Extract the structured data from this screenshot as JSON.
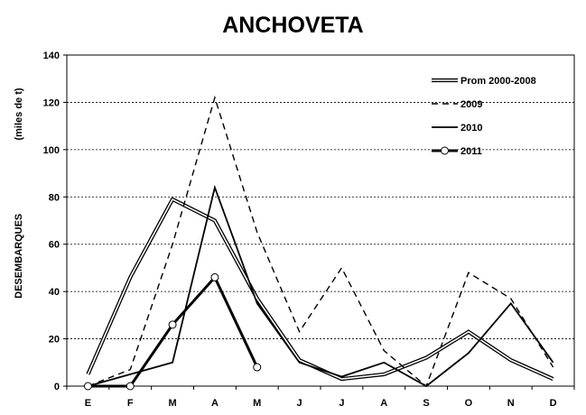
{
  "chart_data": {
    "type": "line",
    "title": "ANCHOVETA",
    "ylabel": "DESEMBARQUES",
    "ylabel_unit": "(miles de t)",
    "xlabel": "",
    "categories": [
      "E",
      "F",
      "M",
      "A",
      "M",
      "J",
      "J",
      "A",
      "S",
      "O",
      "N",
      "D"
    ],
    "ylim": [
      0,
      140
    ],
    "yticks": [
      0,
      20,
      40,
      60,
      80,
      100,
      120,
      140
    ],
    "grid": "horizontal-dotted",
    "legend_position": "top-right",
    "series": [
      {
        "name": "Prom 2000-2008",
        "style": "double",
        "color": "#000000",
        "values": [
          5,
          46,
          79,
          70,
          37,
          11,
          3,
          5,
          12,
          23,
          11,
          3
        ]
      },
      {
        "name": "2009",
        "style": "dashed",
        "color": "#000000",
        "values": [
          0,
          7,
          60,
          122,
          65,
          23,
          50,
          15,
          0,
          48,
          37,
          8
        ]
      },
      {
        "name": "2010",
        "style": "solid",
        "color": "#000000",
        "values": [
          0,
          5,
          10,
          84,
          35,
          10,
          4,
          10,
          0,
          14,
          35,
          10
        ]
      },
      {
        "name": "2011",
        "style": "solid-markers",
        "color": "#000000",
        "values": [
          0,
          0,
          26,
          46,
          8,
          null,
          null,
          null,
          null,
          null,
          null,
          null
        ]
      }
    ]
  }
}
